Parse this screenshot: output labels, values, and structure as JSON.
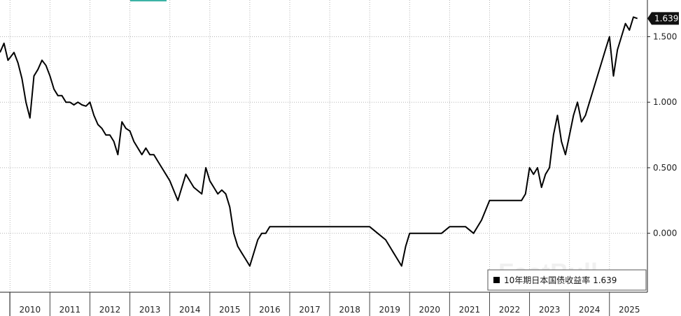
{
  "chart_data": {
    "type": "line",
    "title": "",
    "xlabel": "",
    "ylabel": "",
    "x_range": [
      2009.75,
      2025.95
    ],
    "ylim": [
      -0.45,
      1.78
    ],
    "y_ticks": [
      {
        "value": 1.5,
        "label": "1.500"
      },
      {
        "value": 1.0,
        "label": "1.000"
      },
      {
        "value": 0.5,
        "label": "0.500"
      },
      {
        "value": 0.0,
        "label": "0.000"
      }
    ],
    "x_ticks": [
      "2010",
      "2011",
      "2012",
      "2013",
      "2014",
      "2015",
      "2016",
      "2017",
      "2018",
      "2019",
      "2020",
      "2021",
      "2022",
      "2023",
      "2024",
      "2025"
    ],
    "grid": true,
    "legend_position": "bottom-right",
    "last_value_label": "1.639",
    "series": [
      {
        "name": "10年期日本国债收益率 1.639",
        "color": "#000000",
        "x": [
          2009.75,
          2009.85,
          2009.95,
          2010.0,
          2010.1,
          2010.2,
          2010.3,
          2010.4,
          2010.5,
          2010.6,
          2010.7,
          2010.8,
          2010.9,
          2011.0,
          2011.1,
          2011.2,
          2011.3,
          2011.4,
          2011.5,
          2011.6,
          2011.7,
          2011.8,
          2011.9,
          2012.0,
          2012.1,
          2012.2,
          2012.3,
          2012.4,
          2012.5,
          2012.6,
          2012.7,
          2012.8,
          2012.9,
          2013.0,
          2013.1,
          2013.2,
          2013.3,
          2013.4,
          2013.5,
          2013.6,
          2013.7,
          2013.8,
          2013.9,
          2014.0,
          2014.2,
          2014.4,
          2014.6,
          2014.8,
          2014.9,
          2015.0,
          2015.1,
          2015.2,
          2015.3,
          2015.4,
          2015.5,
          2015.6,
          2015.7,
          2015.8,
          2015.9,
          2016.0,
          2016.1,
          2016.2,
          2016.3,
          2016.4,
          2016.5,
          2016.6,
          2016.7,
          2016.8,
          2016.9,
          2017.0,
          2017.2,
          2017.4,
          2017.6,
          2017.8,
          2018.0,
          2018.2,
          2018.4,
          2018.6,
          2018.8,
          2019.0,
          2019.2,
          2019.4,
          2019.5,
          2019.6,
          2019.7,
          2019.8,
          2019.9,
          2020.0,
          2020.2,
          2020.4,
          2020.6,
          2020.8,
          2021.0,
          2021.2,
          2021.4,
          2021.6,
          2021.8,
          2022.0,
          2022.2,
          2022.4,
          2022.6,
          2022.8,
          2022.9,
          2023.0,
          2023.1,
          2023.2,
          2023.3,
          2023.4,
          2023.5,
          2023.6,
          2023.7,
          2023.8,
          2023.9,
          2024.0,
          2024.1,
          2024.2,
          2024.3,
          2024.4,
          2024.5,
          2024.6,
          2024.7,
          2024.8,
          2024.9,
          2025.0,
          2025.1,
          2025.2,
          2025.3,
          2025.4,
          2025.5,
          2025.6,
          2025.7
        ],
        "values": [
          1.38,
          1.45,
          1.32,
          1.34,
          1.38,
          1.3,
          1.18,
          1.0,
          0.88,
          1.2,
          1.25,
          1.32,
          1.28,
          1.2,
          1.1,
          1.05,
          1.05,
          1.0,
          1.0,
          0.98,
          1.0,
          0.98,
          0.97,
          1.0,
          0.9,
          0.83,
          0.8,
          0.75,
          0.75,
          0.7,
          0.6,
          0.85,
          0.8,
          0.78,
          0.7,
          0.65,
          0.6,
          0.65,
          0.6,
          0.6,
          0.55,
          0.5,
          0.45,
          0.4,
          0.25,
          0.45,
          0.35,
          0.3,
          0.5,
          0.4,
          0.35,
          0.3,
          0.33,
          0.3,
          0.2,
          0.0,
          -0.1,
          -0.15,
          -0.2,
          -0.25,
          -0.15,
          -0.05,
          0.0,
          0.0,
          0.05,
          0.05,
          0.05,
          0.05,
          0.05,
          0.05,
          0.05,
          0.05,
          0.05,
          0.05,
          0.05,
          0.05,
          0.05,
          0.05,
          0.05,
          0.05,
          0.0,
          -0.05,
          -0.1,
          -0.15,
          -0.2,
          -0.25,
          -0.1,
          0.0,
          0.0,
          0.0,
          0.0,
          0.0,
          0.05,
          0.05,
          0.05,
          0.0,
          0.1,
          0.25,
          0.25,
          0.25,
          0.25,
          0.25,
          0.3,
          0.5,
          0.45,
          0.5,
          0.35,
          0.45,
          0.5,
          0.75,
          0.9,
          0.7,
          0.6,
          0.75,
          0.9,
          1.0,
          0.85,
          0.9,
          1.0,
          1.1,
          1.2,
          1.3,
          1.4,
          1.5,
          1.2,
          1.4,
          1.5,
          1.6,
          1.55,
          1.65,
          1.639
        ]
      }
    ]
  },
  "watermark": "FastBull"
}
